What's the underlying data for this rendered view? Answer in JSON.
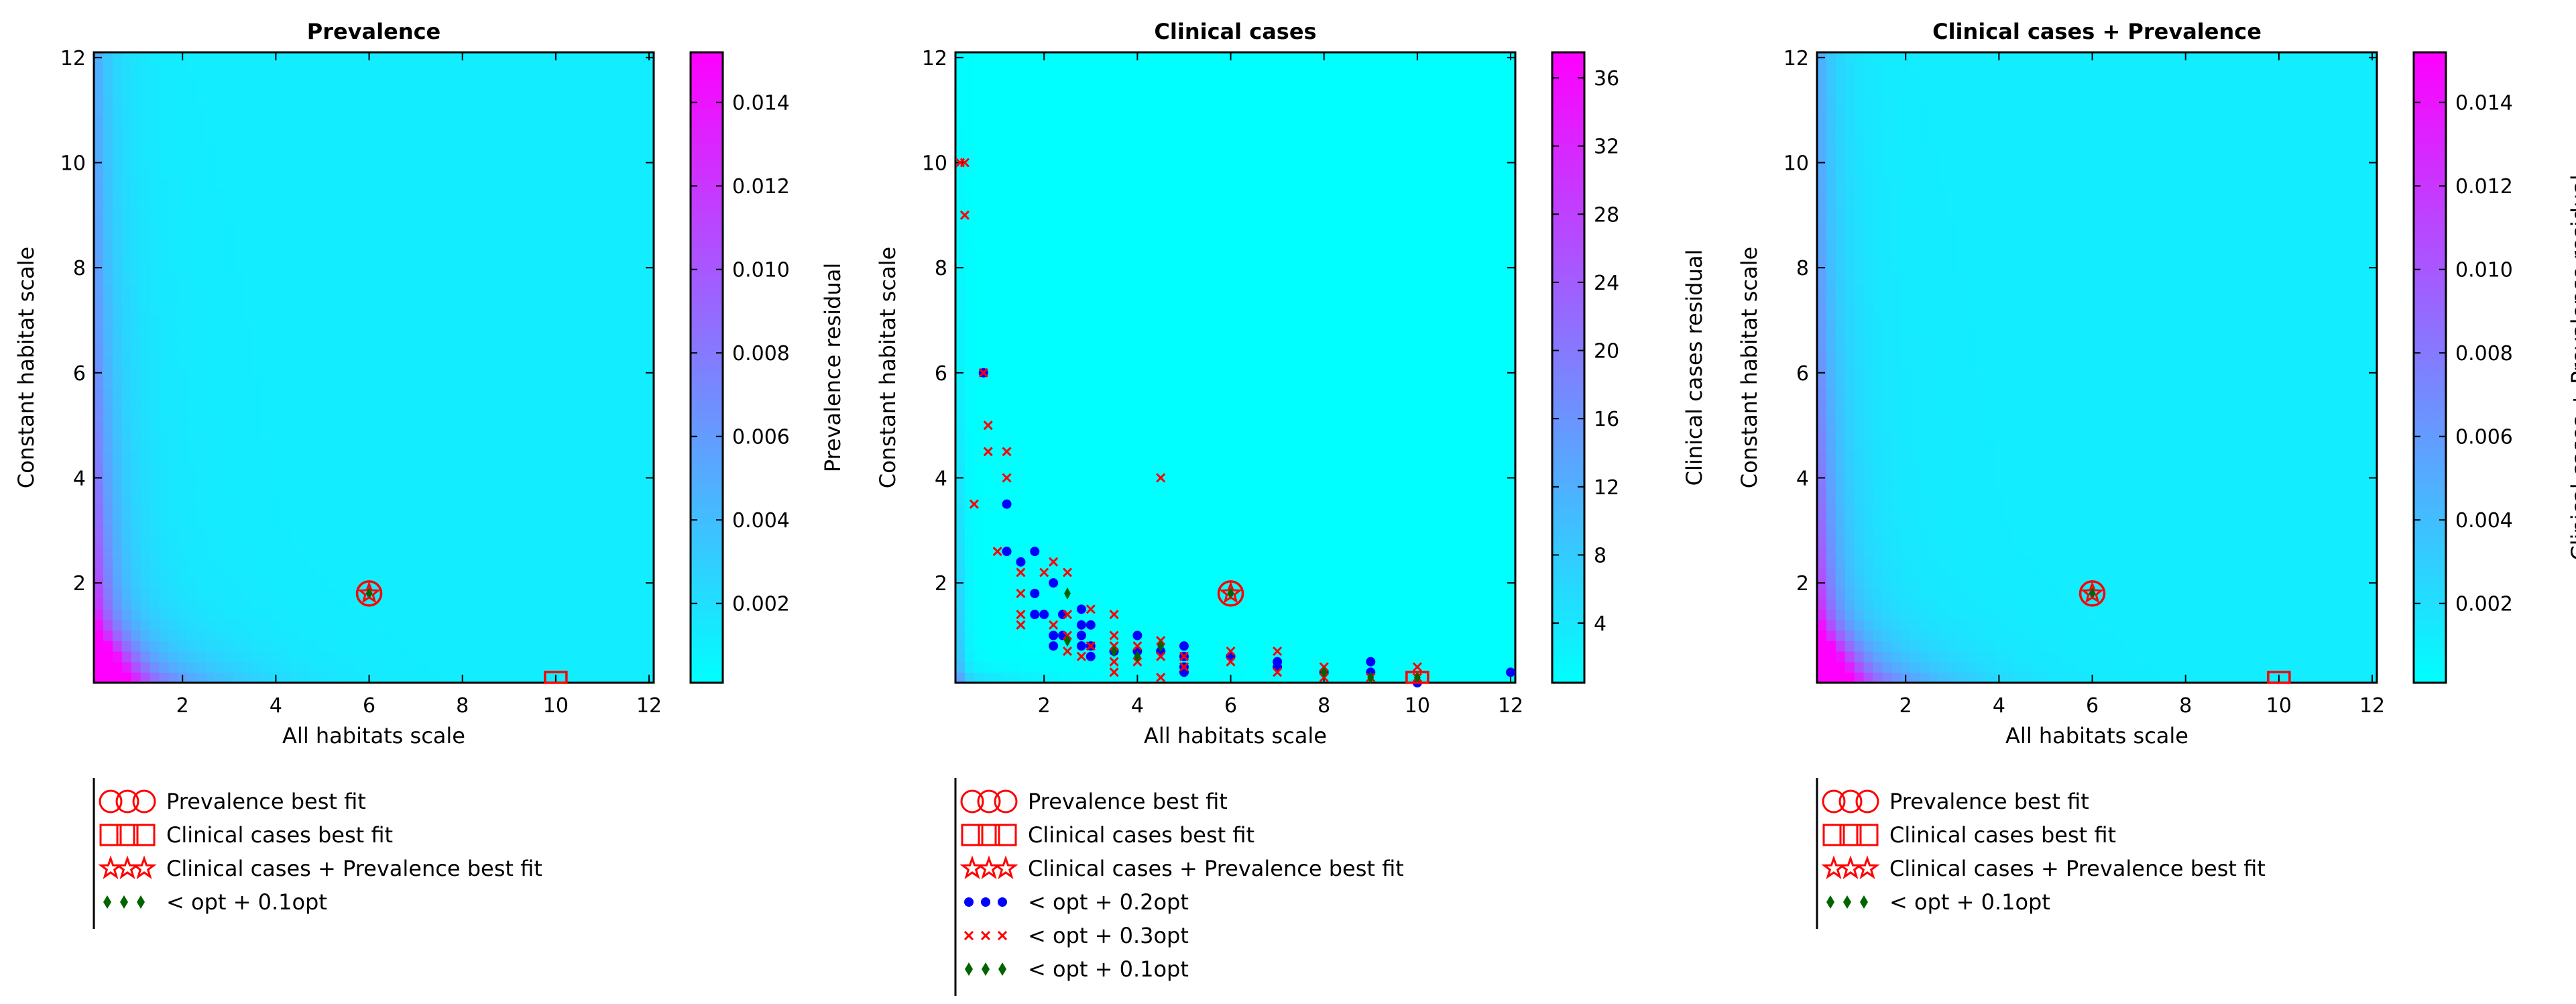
{
  "colors": {
    "cmap_low": "#00ffff",
    "cmap_high": "#ff00ff",
    "best_fit_marker": "#ff0000",
    "within_01": "#006400",
    "within_02": "#0000ff",
    "within_03": "#ff0000"
  },
  "chart_data": [
    {
      "type": "heatmap",
      "title": "Prevalence",
      "xlabel": "All habitats scale",
      "ylabel": "Constant habitat scale",
      "xlim": [
        0.1,
        12.1
      ],
      "ylim": [
        0.1,
        12.1
      ],
      "xticks": [
        2,
        4,
        6,
        8,
        10,
        12
      ],
      "yticks": [
        2,
        4,
        6,
        8,
        10,
        12
      ],
      "heatmap_pattern": "magenta concentrated near low all-habitats scale and low constant habitat scale, cyan elsewhere",
      "colorbar": {
        "label": "Prevalence residual",
        "min": 0.0001,
        "max": 0.0152,
        "ticks": [
          "0.002",
          "0.004",
          "0.006",
          "0.008",
          "0.010",
          "0.012",
          "0.014"
        ],
        "tick_values": [
          0.002,
          0.004,
          0.006,
          0.008,
          0.01,
          0.012,
          0.014
        ]
      },
      "markers": {
        "prevalence_best_fit": {
          "x": 6,
          "y": 1.8
        },
        "clinical_best_fit": {
          "x": 10,
          "y": 0.1
        },
        "combined_best_fit": {
          "x": 6,
          "y": 1.8
        }
      },
      "scatter_series": [
        {
          "name": "< opt + 0.1opt",
          "marker": "diamond",
          "color_key": "within_01",
          "points": [
            [
              6,
              1.8
            ]
          ]
        }
      ],
      "legend": [
        {
          "label": "Prevalence best fit",
          "symbol": "circle"
        },
        {
          "label": "Clinical cases best fit",
          "symbol": "square"
        },
        {
          "label": "Clinical cases + Prevalence best fit",
          "symbol": "star"
        },
        {
          "label": "< opt + 0.1opt",
          "symbol": "diamond"
        }
      ]
    },
    {
      "type": "heatmap",
      "title": "Clinical cases",
      "xlabel": "All habitats scale",
      "ylabel": "Constant habitat scale",
      "xlim": [
        0.1,
        12.1
      ],
      "ylim": [
        0.1,
        12.1
      ],
      "xticks": [
        2,
        4,
        6,
        8,
        10,
        12
      ],
      "yticks": [
        2,
        4,
        6,
        8,
        10,
        12
      ],
      "heatmap_pattern": "mostly cyan, slightly elevated residual along the very low scale edges",
      "colorbar": {
        "label": "Clinical cases residual",
        "min": 0.5,
        "max": 37.5,
        "ticks": [
          "4",
          "8",
          "12",
          "16",
          "20",
          "24",
          "28",
          "32",
          "36"
        ],
        "tick_values": [
          4,
          8,
          12,
          16,
          20,
          24,
          28,
          32,
          36
        ]
      },
      "markers": {
        "prevalence_best_fit": {
          "x": 6,
          "y": 1.8
        },
        "clinical_best_fit": {
          "x": 10,
          "y": 0.1
        },
        "combined_best_fit": {
          "x": 6,
          "y": 1.8
        }
      },
      "scatter_series": [
        {
          "name": "< opt + 0.2opt",
          "marker": "dot",
          "color_key": "within_02",
          "points": [
            [
              0.7,
              6
            ],
            [
              1.2,
              3.5
            ],
            [
              1.2,
              2.6
            ],
            [
              1.5,
              2.4
            ],
            [
              1.8,
              2.6
            ],
            [
              1.8,
              1.8
            ],
            [
              1.8,
              1.4
            ],
            [
              2,
              1.4
            ],
            [
              2.2,
              2
            ],
            [
              2.2,
              1
            ],
            [
              2.4,
              1.4
            ],
            [
              2.4,
              1
            ],
            [
              2.8,
              1.5
            ],
            [
              2.8,
              1.2
            ],
            [
              2.8,
              1
            ],
            [
              2.8,
              0.8
            ],
            [
              3,
              1.2
            ],
            [
              3,
              0.8
            ],
            [
              3,
              0.6
            ],
            [
              2.2,
              0.8
            ],
            [
              3.5,
              0.7
            ],
            [
              4,
              1
            ],
            [
              4,
              0.7
            ],
            [
              4.5,
              0.7
            ],
            [
              5,
              0.8
            ],
            [
              5,
              0.6
            ],
            [
              5,
              0.4
            ],
            [
              5,
              0.3
            ],
            [
              6,
              0.6
            ],
            [
              7,
              0.5
            ],
            [
              7,
              0.4
            ],
            [
              8,
              0.3
            ],
            [
              9,
              0.5
            ],
            [
              9,
              0.3
            ],
            [
              10,
              0.1
            ],
            [
              12,
              0.3
            ]
          ]
        },
        {
          "name": "< opt + 0.3opt",
          "marker": "x",
          "color_key": "within_03",
          "points": [
            [
              0.2,
              10
            ],
            [
              0.3,
              10
            ],
            [
              0.3,
              9
            ],
            [
              0.5,
              3.5
            ],
            [
              0.7,
              6
            ],
            [
              0.8,
              5
            ],
            [
              0.8,
              4.5
            ],
            [
              1.2,
              4.5
            ],
            [
              1.2,
              4
            ],
            [
              1,
              2.6
            ],
            [
              1.5,
              2.2
            ],
            [
              1.5,
              1.8
            ],
            [
              1.5,
              1.4
            ],
            [
              1.5,
              1.2
            ],
            [
              2,
              2.2
            ],
            [
              2.2,
              2.4
            ],
            [
              2.5,
              2.2
            ],
            [
              2.5,
              1.4
            ],
            [
              2.2,
              1.2
            ],
            [
              2.5,
              1
            ],
            [
              2.5,
              0.7
            ],
            [
              2.8,
              0.6
            ],
            [
              3,
              1.5
            ],
            [
              3,
              0.8
            ],
            [
              3.5,
              1.4
            ],
            [
              3.5,
              1
            ],
            [
              3.5,
              0.8
            ],
            [
              3.5,
              0.5
            ],
            [
              3.5,
              0.3
            ],
            [
              4,
              0.8
            ],
            [
              4,
              0.5
            ],
            [
              4.5,
              4
            ],
            [
              4.5,
              0.9
            ],
            [
              4.5,
              0.6
            ],
            [
              4.5,
              0.2
            ],
            [
              5,
              0.6
            ],
            [
              5,
              0.4
            ],
            [
              6,
              0.7
            ],
            [
              6,
              0.5
            ],
            [
              7,
              0.7
            ],
            [
              7,
              0.3
            ],
            [
              8,
              0.4
            ],
            [
              8,
              0.2
            ],
            [
              9,
              0.2
            ],
            [
              10,
              0.4
            ],
            [
              10,
              0.2
            ]
          ]
        },
        {
          "name": "< opt + 0.1opt",
          "marker": "diamond",
          "color_key": "within_01",
          "points": [
            [
              6,
              1.8
            ],
            [
              2.5,
              1.8
            ],
            [
              2.5,
              0.9
            ],
            [
              3.5,
              0.7
            ],
            [
              4,
              0.6
            ],
            [
              4.5,
              0.8
            ],
            [
              8,
              0.3
            ],
            [
              9,
              0.2
            ],
            [
              10,
              0.2
            ]
          ]
        }
      ],
      "legend": [
        {
          "label": "Prevalence best fit",
          "symbol": "circle"
        },
        {
          "label": "Clinical cases best fit",
          "symbol": "square"
        },
        {
          "label": "Clinical cases + Prevalence best fit",
          "symbol": "star"
        },
        {
          "label": "< opt + 0.2opt",
          "symbol": "dot"
        },
        {
          "label": "< opt + 0.3opt",
          "symbol": "x"
        },
        {
          "label": "< opt + 0.1opt",
          "symbol": "diamond"
        }
      ]
    },
    {
      "type": "heatmap",
      "title": "Clinical cases + Prevalence",
      "xlabel": "All habitats scale",
      "ylabel": "Constant habitat scale",
      "xlim": [
        0.1,
        12.1
      ],
      "ylim": [
        0.1,
        12.1
      ],
      "xticks": [
        2,
        4,
        6,
        8,
        10,
        12
      ],
      "yticks": [
        2,
        4,
        6,
        8,
        10,
        12
      ],
      "heatmap_pattern": "magenta concentrated near low all-habitats scale and low constant habitat scale, cyan elsewhere",
      "colorbar": {
        "label": "Clinical cases + Prevalence residual",
        "min": 0.0001,
        "max": 0.0152,
        "ticks": [
          "0.002",
          "0.004",
          "0.006",
          "0.008",
          "0.010",
          "0.012",
          "0.014"
        ],
        "tick_values": [
          0.002,
          0.004,
          0.006,
          0.008,
          0.01,
          0.012,
          0.014
        ]
      },
      "markers": {
        "prevalence_best_fit": {
          "x": 6,
          "y": 1.8
        },
        "clinical_best_fit": {
          "x": 10,
          "y": 0.1
        },
        "combined_best_fit": {
          "x": 6,
          "y": 1.8
        }
      },
      "scatter_series": [
        {
          "name": "< opt + 0.1opt",
          "marker": "diamond",
          "color_key": "within_01",
          "points": [
            [
              6,
              1.8
            ]
          ]
        }
      ],
      "legend": [
        {
          "label": "Prevalence best fit",
          "symbol": "circle"
        },
        {
          "label": "Clinical cases best fit",
          "symbol": "square"
        },
        {
          "label": "Clinical cases + Prevalence best fit",
          "symbol": "star"
        },
        {
          "label": "< opt + 0.1opt",
          "symbol": "diamond"
        }
      ]
    }
  ]
}
